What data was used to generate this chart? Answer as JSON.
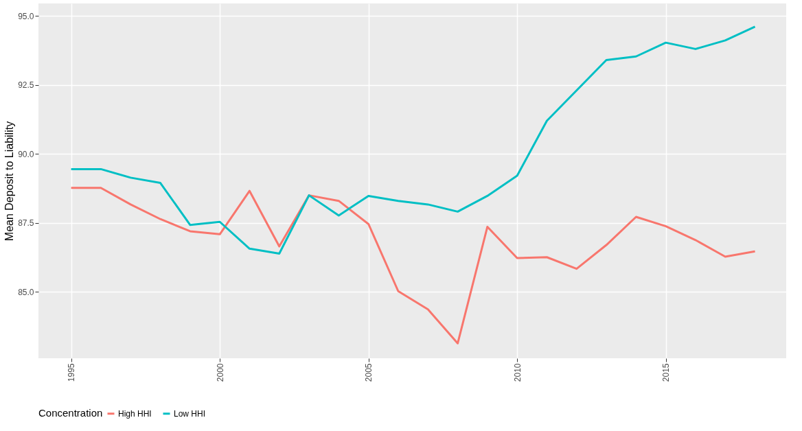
{
  "chart_data": {
    "type": "line",
    "ylabel": "Mean Deposit to Liability",
    "legend_title": "Concentration",
    "legend": "bottom",
    "grid": true,
    "line_style": "solid",
    "marker": "none",
    "x": [
      1995,
      1996,
      1997,
      1998,
      1999,
      2000,
      2001,
      2002,
      2003,
      2004,
      2005,
      2006,
      2007,
      2008,
      2009,
      2010,
      2011,
      2012,
      2013,
      2014,
      2015,
      2016,
      2017,
      2018
    ],
    "xlim": [
      1993.9,
      2019.05
    ],
    "xticks": [
      1995,
      2000,
      2005,
      2010,
      2015
    ],
    "ylim": [
      82.6,
      95.45
    ],
    "yticks": [
      {
        "value": 85,
        "label": "85.0"
      },
      {
        "value": 87.5,
        "label": "87.5"
      },
      {
        "value": 90,
        "label": "90.0"
      },
      {
        "value": 92.5,
        "label": "92.5"
      },
      {
        "value": 95,
        "label": "95.0"
      }
    ],
    "series": [
      {
        "name": "High HHI",
        "color": "#f8766d",
        "values": [
          88.77,
          88.77,
          88.17,
          87.64,
          87.2,
          87.09,
          88.66,
          86.65,
          88.5,
          88.3,
          87.46,
          85.03,
          84.37,
          83.14,
          87.36,
          86.23,
          86.26,
          85.84,
          86.7,
          87.72,
          87.38,
          86.88,
          86.28,
          86.47
        ]
      },
      {
        "name": "Low HHI",
        "color": "#00bfc4",
        "values": [
          89.45,
          89.45,
          89.14,
          88.95,
          87.43,
          87.54,
          86.57,
          86.39,
          88.5,
          87.77,
          88.48,
          88.3,
          88.17,
          87.91,
          88.48,
          89.21,
          91.2,
          92.3,
          93.4,
          93.53,
          94.03,
          93.8,
          94.11,
          94.61
        ]
      }
    ]
  }
}
